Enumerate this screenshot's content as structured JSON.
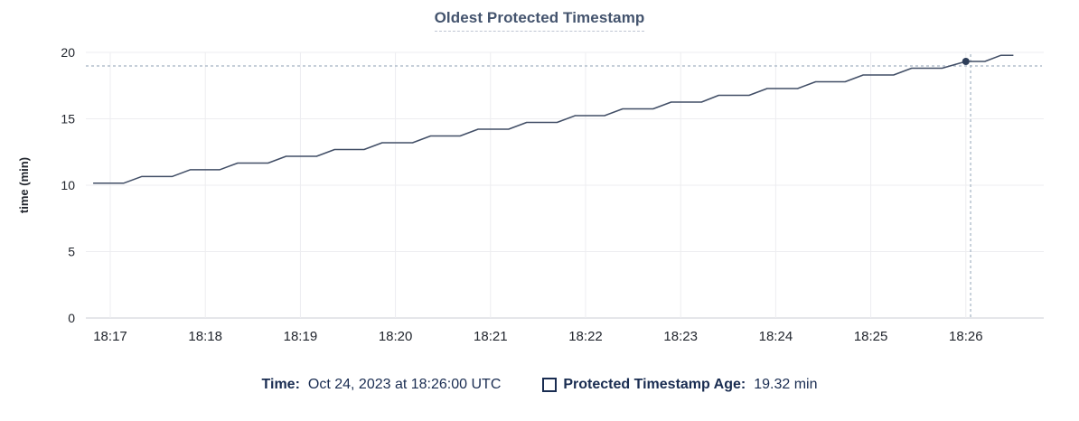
{
  "title": "Oldest Protected Timestamp",
  "footer": {
    "time_label": "Time:",
    "time_value": "Oct 24, 2023 at 18:26:00 UTC",
    "series_label": "Protected Timestamp Age:",
    "series_value": "19.32 min"
  },
  "colors": {
    "title": "#44546e",
    "underline": "#bfc5d2",
    "line": "#414e66",
    "point": "#2e3e59",
    "grid": "#ededf0",
    "axis": "#d5d7dd",
    "cursor": "#a3b2c2",
    "tick_text": "#22262e",
    "legend_text": "#192c51"
  },
  "chart_data": {
    "type": "line",
    "title": "Oldest Protected Timestamp",
    "xlabel": "",
    "ylabel": "time (min)",
    "ylim": [
      0,
      20
    ],
    "yticks": [
      0,
      5,
      10,
      15,
      20
    ],
    "x_tick_labels": [
      "18:17",
      "18:18",
      "18:19",
      "18:20",
      "18:21",
      "18:22",
      "18:23",
      "18:24",
      "18:25",
      "18:26"
    ],
    "x_units": "minutes after first tick (18:17 UTC), axis extends -0.26 to 9.75",
    "grid": true,
    "legend_position": "bottom",
    "series": [
      {
        "name": "Protected Timestamp Age",
        "unit": "min",
        "points": [
          [
            -0.18,
            10.15
          ],
          [
            0.14,
            10.15
          ],
          [
            0.33,
            10.65
          ],
          [
            0.65,
            10.65
          ],
          [
            0.84,
            11.16
          ],
          [
            1.15,
            11.16
          ],
          [
            1.34,
            11.67
          ],
          [
            1.66,
            11.67
          ],
          [
            1.85,
            12.18
          ],
          [
            2.17,
            12.18
          ],
          [
            2.36,
            12.69
          ],
          [
            2.67,
            12.69
          ],
          [
            2.86,
            13.2
          ],
          [
            3.18,
            13.2
          ],
          [
            3.37,
            13.71
          ],
          [
            3.68,
            13.71
          ],
          [
            3.87,
            14.22
          ],
          [
            4.19,
            14.22
          ],
          [
            4.38,
            14.73
          ],
          [
            4.7,
            14.73
          ],
          [
            4.89,
            15.24
          ],
          [
            5.2,
            15.24
          ],
          [
            5.39,
            15.75
          ],
          [
            5.71,
            15.75
          ],
          [
            5.9,
            16.26
          ],
          [
            6.22,
            16.26
          ],
          [
            6.4,
            16.77
          ],
          [
            6.72,
            16.77
          ],
          [
            6.91,
            17.28
          ],
          [
            7.23,
            17.28
          ],
          [
            7.42,
            17.79
          ],
          [
            7.73,
            17.79
          ],
          [
            7.92,
            18.3
          ],
          [
            8.24,
            18.3
          ],
          [
            8.43,
            18.81
          ],
          [
            8.75,
            18.81
          ],
          [
            9.0,
            19.32
          ],
          [
            9.2,
            19.32
          ],
          [
            9.37,
            19.78
          ],
          [
            9.5,
            19.78
          ]
        ]
      }
    ],
    "cursor": {
      "time": "18:26:00",
      "t": 9.05,
      "hline_value": 18.98,
      "point": {
        "t": 9.0,
        "value": 19.32
      }
    }
  }
}
